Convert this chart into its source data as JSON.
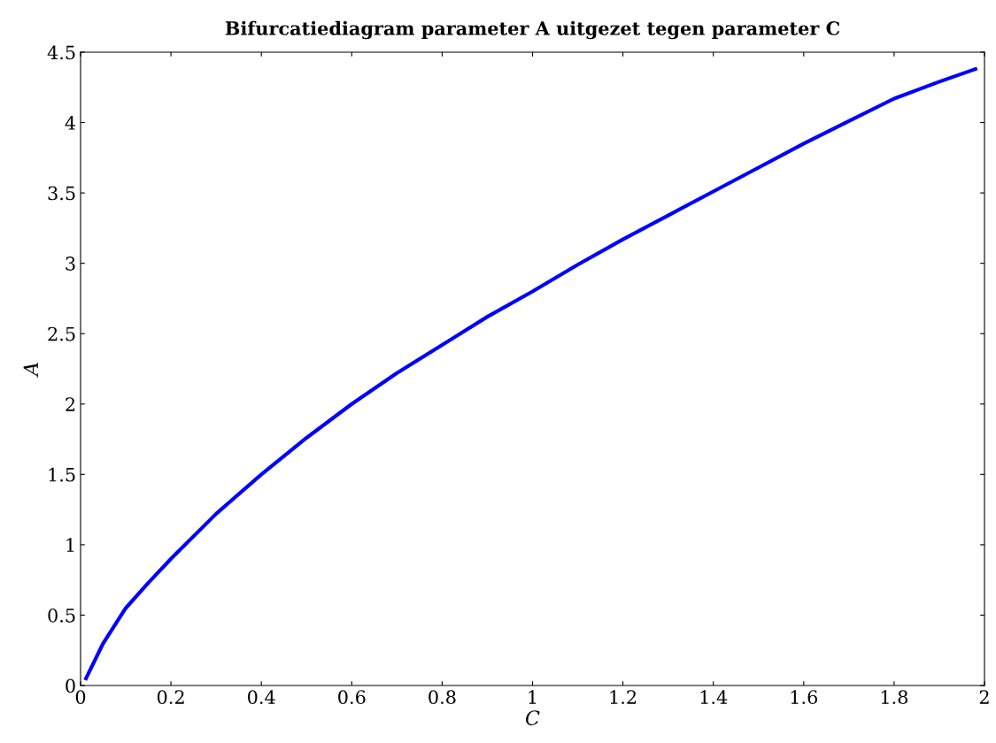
{
  "chart_data": {
    "type": "line",
    "title": "Bifurcatiediagram parameter A uitgezet tegen parameter C",
    "xlabel": "C",
    "ylabel": "A",
    "series": [
      {
        "color": "#0000ff",
        "x": [
          0.012,
          0.05,
          0.1,
          0.15,
          0.2,
          0.3,
          0.4,
          0.5,
          0.6,
          0.7,
          0.8,
          0.9,
          1.0,
          1.1,
          1.2,
          1.3,
          1.4,
          1.5,
          1.6,
          1.7,
          1.8,
          1.9,
          1.98
        ],
        "values": [
          0.05,
          0.3,
          0.55,
          0.73,
          0.9,
          1.22,
          1.5,
          1.76,
          2.0,
          2.22,
          2.42,
          2.62,
          2.8,
          2.99,
          3.17,
          3.34,
          3.51,
          3.68,
          3.85,
          4.01,
          4.17,
          4.29,
          4.38
        ]
      }
    ],
    "xlim": [
      0,
      2
    ],
    "xticks": [
      0,
      0.2,
      0.4,
      0.6,
      0.8,
      1,
      1.2,
      1.4,
      1.6,
      1.8,
      2
    ],
    "ylim": [
      0,
      4.5
    ],
    "yticks": [
      0,
      0.5,
      1,
      1.5,
      2,
      2.5,
      3,
      3.5,
      4,
      4.5
    ],
    "grid": false,
    "legend": false,
    "marker": "none",
    "line_style": "solid"
  }
}
